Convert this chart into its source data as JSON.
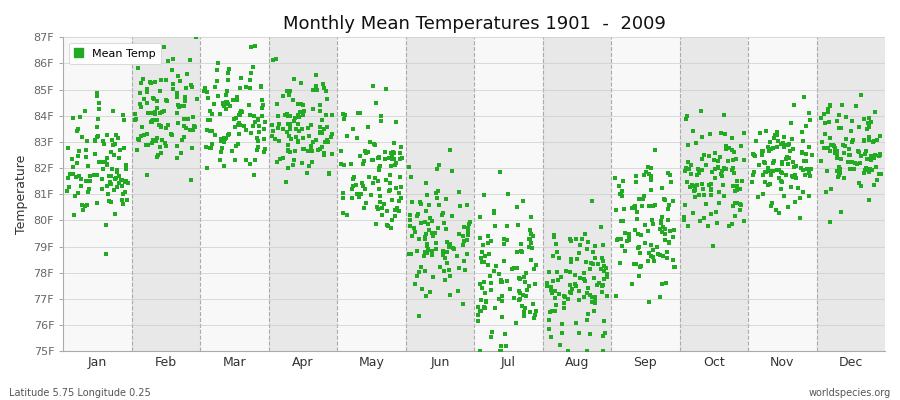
{
  "title": "Monthly Mean Temperatures 1901  -  2009",
  "ylabel": "Temperature",
  "bottom_left_label": "Latitude 5.75 Longitude 0.25",
  "bottom_right_label": "worldspecies.org",
  "legend_label": "Mean Temp",
  "dot_color": "#22aa22",
  "background_color": "#ffffff",
  "plot_bg_color": "#f0f0f0",
  "stripe_light": "#f8f8f8",
  "stripe_dark": "#e8e8e8",
  "ylim": [
    75,
    87
  ],
  "yticks": [
    75,
    76,
    77,
    78,
    79,
    80,
    81,
    82,
    83,
    84,
    85,
    86,
    87
  ],
  "ytick_labels": [
    "75F",
    "76F",
    "77F",
    "78F",
    "79F",
    "80F",
    "81F",
    "82F",
    "83F",
    "84F",
    "85F",
    "86F",
    "87F"
  ],
  "months": [
    "Jan",
    "Feb",
    "Mar",
    "Apr",
    "May",
    "Jun",
    "Jul",
    "Aug",
    "Sep",
    "Oct",
    "Nov",
    "Dec"
  ],
  "month_means": [
    82.0,
    84.0,
    83.8,
    83.5,
    82.0,
    79.5,
    77.8,
    77.5,
    79.8,
    81.5,
    82.2,
    82.8
  ],
  "month_stds": [
    1.1,
    1.0,
    1.1,
    1.0,
    1.3,
    1.3,
    1.2,
    1.1,
    1.2,
    1.2,
    1.0,
    0.9
  ],
  "n_years": 109,
  "seed": 12345
}
